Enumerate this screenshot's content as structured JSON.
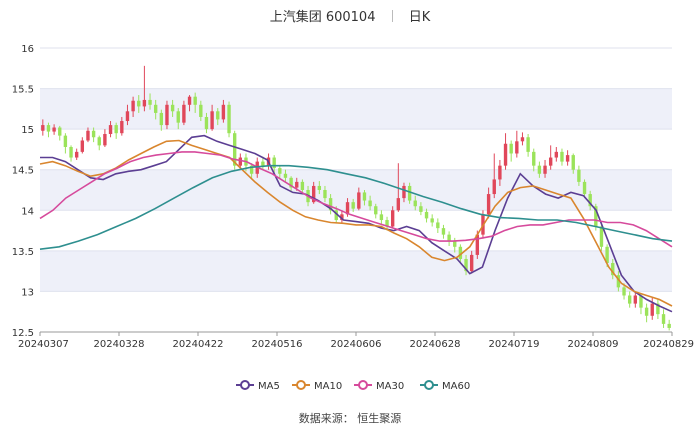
{
  "header": {
    "name": "上汽集团",
    "code": "600104",
    "period": "日K"
  },
  "source": "数据来源： 恒生聚源",
  "colors": {
    "MA5": "#5b3e93",
    "MA10": "#d9862e",
    "MA30": "#d64a9c",
    "MA60": "#2e8f8f",
    "up": "#e0475a",
    "down": "#9be35a"
  },
  "chart_data": {
    "type": "candlestick",
    "ylim": [
      12.5,
      16
    ],
    "yticks": [
      "16",
      "15.5",
      "15",
      "14.5",
      "14",
      "13.5",
      "13",
      "12.5"
    ],
    "xticks": [
      "20240307",
      "20240328",
      "20240422",
      "20240516",
      "20240606",
      "20240628",
      "20240719",
      "20240809",
      "20240829"
    ],
    "legend": [
      "MA5",
      "MA10",
      "MA30",
      "MA60"
    ],
    "grid": true,
    "candles": [
      [
        14.98,
        15.05,
        15.12,
        14.92
      ],
      [
        15.05,
        14.97,
        15.08,
        14.9
      ],
      [
        14.97,
        15.02,
        15.06,
        14.93
      ],
      [
        15.02,
        14.92,
        15.04,
        14.86
      ],
      [
        14.92,
        14.78,
        14.95,
        14.7
      ],
      [
        14.78,
        14.65,
        14.8,
        14.6
      ],
      [
        14.65,
        14.72,
        14.76,
        14.62
      ],
      [
        14.72,
        14.86,
        14.9,
        14.7
      ],
      [
        14.86,
        14.98,
        15.02,
        14.84
      ],
      [
        14.98,
        14.9,
        15.02,
        14.84
      ],
      [
        14.9,
        14.8,
        14.92,
        14.74
      ],
      [
        14.8,
        14.94,
        15.0,
        14.78
      ],
      [
        14.94,
        15.05,
        15.1,
        14.9
      ],
      [
        15.05,
        14.95,
        15.08,
        14.88
      ],
      [
        14.95,
        15.1,
        15.15,
        14.92
      ],
      [
        15.1,
        15.22,
        15.3,
        15.05
      ],
      [
        15.22,
        15.35,
        15.4,
        15.15
      ],
      [
        15.35,
        15.28,
        15.42,
        15.2
      ],
      [
        15.28,
        15.36,
        15.78,
        15.22
      ],
      [
        15.36,
        15.3,
        15.44,
        15.24
      ],
      [
        15.3,
        15.2,
        15.36,
        15.12
      ],
      [
        15.2,
        15.05,
        15.24,
        14.98
      ],
      [
        15.05,
        15.3,
        15.35,
        15.0
      ],
      [
        15.3,
        15.22,
        15.36,
        15.15
      ],
      [
        15.22,
        15.08,
        15.26,
        15.0
      ],
      [
        15.08,
        15.3,
        15.35,
        15.05
      ],
      [
        15.3,
        15.4,
        15.42,
        15.22
      ],
      [
        15.4,
        15.3,
        15.45,
        15.2
      ],
      [
        15.3,
        15.15,
        15.35,
        15.1
      ],
      [
        15.15,
        15.0,
        15.2,
        14.95
      ],
      [
        15.0,
        15.22,
        15.3,
        14.98
      ],
      [
        15.22,
        15.12,
        15.26,
        15.05
      ],
      [
        15.12,
        15.3,
        15.36,
        15.08
      ],
      [
        15.3,
        14.95,
        15.34,
        14.9
      ],
      [
        14.95,
        14.55,
        14.98,
        14.5
      ],
      [
        14.55,
        14.65,
        14.7,
        14.5
      ],
      [
        14.65,
        14.55,
        14.7,
        14.48
      ],
      [
        14.55,
        14.45,
        14.58,
        14.4
      ],
      [
        14.45,
        14.6,
        14.65,
        14.4
      ],
      [
        14.6,
        14.55,
        14.66,
        14.5
      ],
      [
        14.55,
        14.65,
        14.7,
        14.5
      ],
      [
        14.65,
        14.52,
        14.68,
        14.46
      ],
      [
        14.52,
        14.45,
        14.55,
        14.4
      ],
      [
        14.45,
        14.4,
        14.5,
        14.35
      ],
      [
        14.4,
        14.28,
        14.42,
        14.22
      ],
      [
        14.28,
        14.35,
        14.4,
        14.24
      ],
      [
        14.35,
        14.25,
        14.38,
        14.2
      ],
      [
        14.25,
        14.1,
        14.3,
        14.05
      ],
      [
        14.1,
        14.3,
        14.35,
        14.08
      ],
      [
        14.3,
        14.25,
        14.36,
        14.2
      ],
      [
        14.25,
        14.15,
        14.3,
        14.1
      ],
      [
        14.15,
        14.0,
        14.2,
        13.95
      ],
      [
        14.0,
        13.88,
        14.05,
        13.85
      ],
      [
        13.88,
        13.95,
        14.0,
        13.84
      ],
      [
        13.95,
        14.1,
        14.15,
        13.92
      ],
      [
        14.1,
        14.02,
        14.14,
        13.98
      ],
      [
        14.02,
        14.22,
        14.28,
        14.0
      ],
      [
        14.22,
        14.12,
        14.25,
        14.06
      ],
      [
        14.12,
        14.05,
        14.18,
        14.0
      ],
      [
        14.05,
        13.95,
        14.08,
        13.9
      ],
      [
        13.95,
        13.88,
        14.0,
        13.82
      ],
      [
        13.88,
        13.8,
        13.92,
        13.75
      ],
      [
        13.8,
        14.0,
        14.05,
        13.78
      ],
      [
        14.0,
        14.15,
        14.58,
        13.98
      ],
      [
        14.15,
        14.3,
        14.34,
        14.1
      ],
      [
        14.3,
        14.12,
        14.34,
        14.08
      ],
      [
        14.12,
        14.05,
        14.18,
        14.0
      ],
      [
        14.05,
        13.98,
        14.1,
        13.94
      ],
      [
        13.98,
        13.9,
        14.02,
        13.85
      ],
      [
        13.9,
        13.85,
        13.95,
        13.8
      ],
      [
        13.85,
        13.78,
        13.9,
        13.72
      ],
      [
        13.78,
        13.7,
        13.82,
        13.65
      ],
      [
        13.7,
        13.62,
        13.74,
        13.56
      ],
      [
        13.62,
        13.55,
        13.66,
        13.48
      ],
      [
        13.55,
        13.4,
        13.58,
        13.35
      ],
      [
        13.4,
        13.25,
        13.45,
        13.2
      ],
      [
        13.25,
        13.45,
        13.5,
        13.22
      ],
      [
        13.45,
        13.7,
        13.75,
        13.4
      ],
      [
        13.7,
        13.95,
        14.0,
        13.65
      ],
      [
        13.95,
        14.2,
        14.28,
        13.9
      ],
      [
        14.2,
        14.38,
        14.7,
        14.15
      ],
      [
        14.38,
        14.55,
        14.62,
        14.3
      ],
      [
        14.55,
        14.82,
        14.95,
        14.5
      ],
      [
        14.82,
        14.7,
        14.86,
        14.6
      ],
      [
        14.7,
        14.85,
        14.98,
        14.65
      ],
      [
        14.85,
        14.9,
        14.96,
        14.8
      ],
      [
        14.9,
        14.72,
        14.94,
        14.66
      ],
      [
        14.72,
        14.55,
        14.76,
        14.48
      ],
      [
        14.55,
        14.45,
        14.6,
        14.4
      ],
      [
        14.45,
        14.55,
        14.62,
        14.4
      ],
      [
        14.55,
        14.65,
        14.8,
        14.5
      ],
      [
        14.65,
        14.72,
        14.78,
        14.6
      ],
      [
        14.72,
        14.6,
        14.76,
        14.55
      ],
      [
        14.6,
        14.68,
        14.74,
        14.55
      ],
      [
        14.68,
        14.5,
        14.7,
        14.45
      ],
      [
        14.5,
        14.35,
        14.55,
        14.3
      ],
      [
        14.35,
        14.2,
        14.38,
        14.15
      ],
      [
        14.2,
        14.05,
        14.24,
        14.0
      ],
      [
        14.05,
        13.8,
        14.08,
        13.75
      ],
      [
        13.8,
        13.55,
        13.85,
        13.5
      ],
      [
        13.55,
        13.35,
        13.58,
        13.3
      ],
      [
        13.35,
        13.2,
        13.4,
        13.15
      ],
      [
        13.2,
        13.05,
        13.25,
        13.0
      ],
      [
        13.05,
        12.95,
        13.1,
        12.9
      ],
      [
        12.95,
        12.85,
        13.0,
        12.8
      ],
      [
        12.85,
        12.95,
        13.0,
        12.8
      ],
      [
        12.95,
        12.8,
        12.98,
        12.72
      ],
      [
        12.8,
        12.7,
        12.85,
        12.62
      ],
      [
        12.7,
        12.85,
        12.92,
        12.65
      ],
      [
        12.85,
        12.72,
        12.9,
        12.66
      ],
      [
        12.72,
        12.6,
        12.78,
        12.55
      ],
      [
        12.6,
        12.55,
        12.65,
        12.52
      ]
    ],
    "series": [
      {
        "name": "MA5",
        "values": [
          14.65,
          14.65,
          14.6,
          14.5,
          14.4,
          14.38,
          14.45,
          14.48,
          14.5,
          14.55,
          14.6,
          14.75,
          14.9,
          14.92,
          14.85,
          14.8,
          14.75,
          14.7,
          14.62,
          14.3,
          14.22,
          14.2,
          14.12,
          14.02,
          13.88,
          13.86,
          13.84,
          13.78,
          13.75,
          13.8,
          13.75,
          13.6,
          13.5,
          13.4,
          13.22,
          13.3,
          13.75,
          14.15,
          14.45,
          14.3,
          14.2,
          14.15,
          14.22,
          14.18,
          14.0,
          13.6,
          13.2,
          13.0,
          12.9,
          12.82,
          12.75
        ]
      },
      {
        "name": "MA10",
        "values": [
          14.57,
          14.6,
          14.55,
          14.48,
          14.42,
          14.45,
          14.52,
          14.62,
          14.7,
          14.78,
          14.85,
          14.86,
          14.8,
          14.75,
          14.7,
          14.65,
          14.5,
          14.35,
          14.22,
          14.1,
          14.0,
          13.92,
          13.88,
          13.85,
          13.84,
          13.82,
          13.82,
          13.8,
          13.72,
          13.65,
          13.55,
          13.42,
          13.38,
          13.42,
          13.55,
          13.8,
          14.05,
          14.22,
          14.28,
          14.3,
          14.25,
          14.2,
          14.15,
          13.9,
          13.6,
          13.3,
          13.1,
          13.0,
          12.95,
          12.9,
          12.82
        ]
      },
      {
        "name": "MA30",
        "values": [
          13.9,
          14.0,
          14.15,
          14.25,
          14.35,
          14.45,
          14.52,
          14.6,
          14.65,
          14.68,
          14.7,
          14.72,
          14.72,
          14.7,
          14.68,
          14.63,
          14.6,
          14.52,
          14.45,
          14.35,
          14.25,
          14.15,
          14.08,
          14.02,
          13.95,
          13.9,
          13.85,
          13.8,
          13.75,
          13.7,
          13.65,
          13.62,
          13.62,
          13.63,
          13.65,
          13.68,
          13.75,
          13.8,
          13.82,
          13.82,
          13.85,
          13.88,
          13.88,
          13.88,
          13.85,
          13.85,
          13.82,
          13.75,
          13.65,
          13.55
        ]
      },
      {
        "name": "MA60",
        "values": [
          13.52,
          13.55,
          13.62,
          13.7,
          13.8,
          13.9,
          14.02,
          14.15,
          14.28,
          14.4,
          14.48,
          14.53,
          14.55,
          14.55,
          14.53,
          14.5,
          14.45,
          14.4,
          14.33,
          14.25,
          14.17,
          14.1,
          14.02,
          13.95,
          13.91,
          13.9,
          13.88,
          13.88,
          13.85,
          13.8,
          13.75,
          13.7,
          13.65,
          13.62
        ]
      }
    ]
  }
}
